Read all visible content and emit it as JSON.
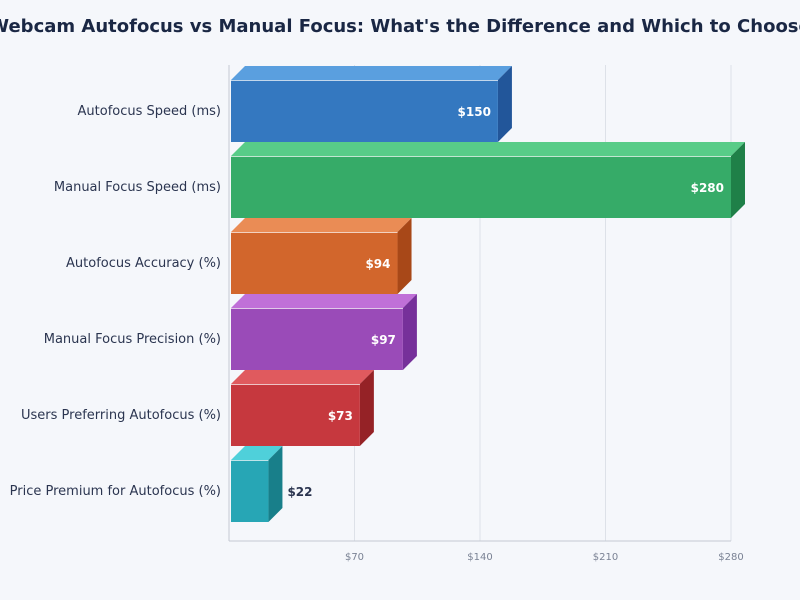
{
  "chart_data": {
    "type": "bar",
    "orientation": "horizontal",
    "style": "3d",
    "title": "Webcam Autofocus vs Manual Focus: What's the Difference and Which to Choose",
    "categories": [
      "Autofocus Speed (ms)",
      "Manual Focus Speed (ms)",
      "Autofocus Accuracy (%)",
      "Manual Focus Precision (%)",
      "Users Preferring Autofocus (%)",
      "Price Premium for Autofocus (%)"
    ],
    "values": [
      150,
      280,
      94,
      97,
      73,
      22
    ],
    "data_labels": [
      "$150",
      "$280",
      "$94",
      "$97",
      "$73",
      "$22"
    ],
    "xlim": [
      0,
      280
    ],
    "xticks": [
      70,
      140,
      210,
      280
    ],
    "xtick_labels": [
      "$70",
      "$140",
      "$210",
      "$280"
    ],
    "grid": true,
    "colors": [
      {
        "front": "#3478c0",
        "top": "#5a9fdf",
        "side": "#22569a"
      },
      {
        "front": "#36ab68",
        "top": "#58cc88",
        "side": "#1f8048"
      },
      {
        "front": "#d2662c",
        "top": "#ea8c55",
        "side": "#a84818"
      },
      {
        "front": "#9a4bb8",
        "top": "#c070d8",
        "side": "#76309a"
      },
      {
        "front": "#c6383e",
        "top": "#e05a5e",
        "side": "#952226"
      },
      {
        "front": "#27a6b5",
        "top": "#4fd0da",
        "side": "#187f8a"
      }
    ]
  }
}
